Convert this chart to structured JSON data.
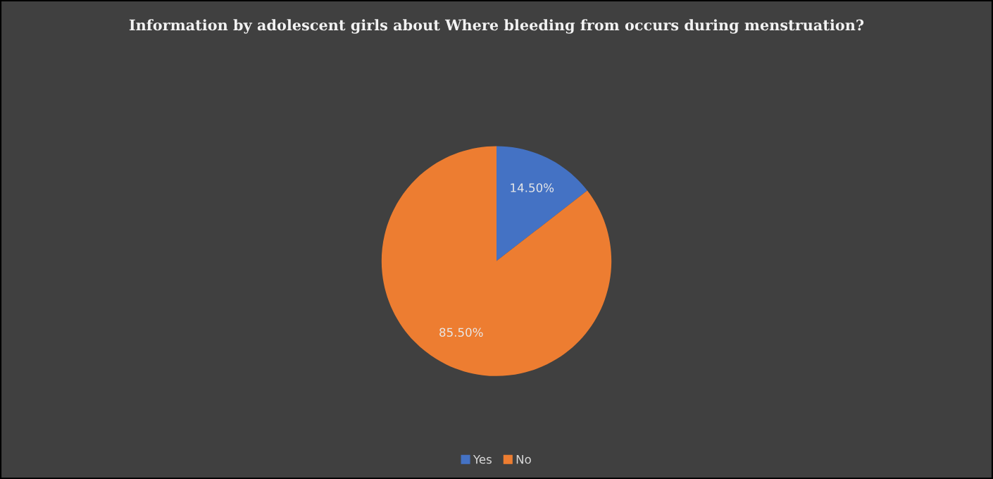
{
  "chart_data": {
    "type": "pie",
    "title": "Information by adolescent girls about Where bleeding from occurs during menstruation?",
    "categories": [
      "Yes",
      "No"
    ],
    "values": [
      14.5,
      85.5
    ],
    "value_labels": [
      "14.50%",
      "85.50%"
    ],
    "colors": [
      "#4472c4",
      "#ed7d31"
    ],
    "legend": "bottom"
  }
}
